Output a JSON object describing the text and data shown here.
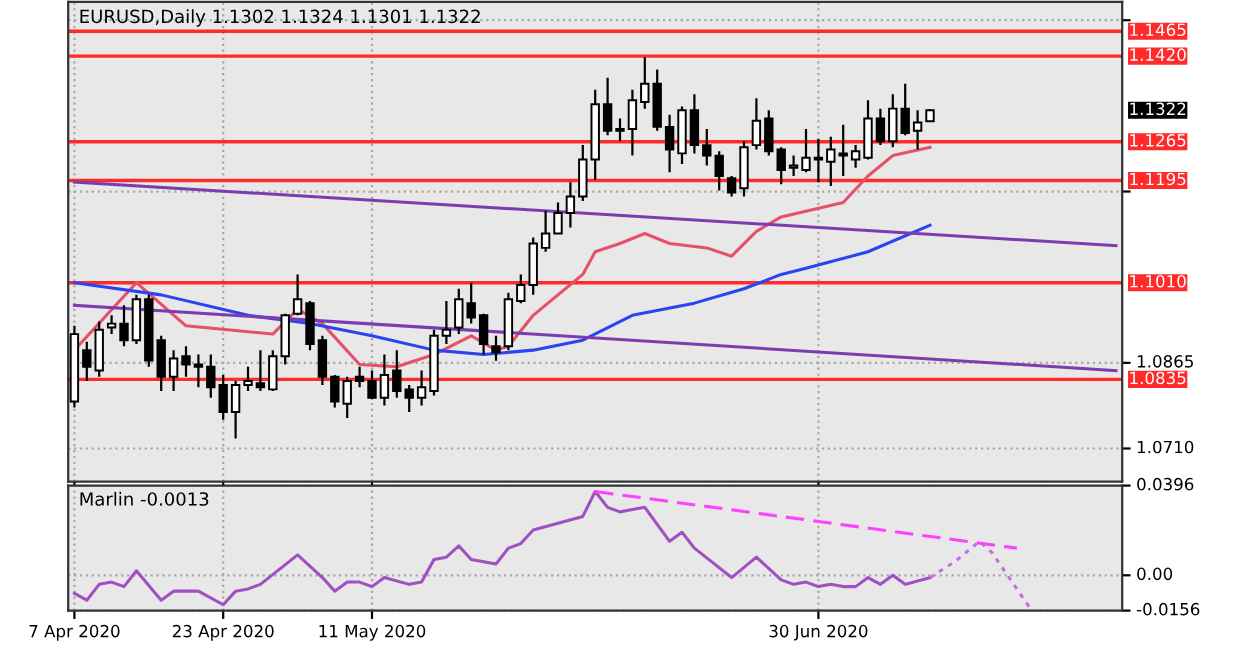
{
  "chart_data": [
    {
      "type": "candlestick",
      "title": "EURUSD,Daily 1.1302 1.1324 1.1301 1.1322",
      "categories": [
        null,
        null,
        null,
        null,
        null,
        null,
        null,
        null,
        null,
        null,
        null,
        null,
        null,
        null,
        null,
        null,
        null,
        null,
        null,
        null,
        null,
        null,
        null,
        null,
        null,
        null,
        null,
        null,
        null,
        null,
        null,
        null,
        null,
        null,
        null,
        null,
        null,
        null,
        null,
        null,
        null,
        null,
        null,
        null,
        null,
        null,
        null,
        null,
        null,
        null,
        null,
        null,
        null,
        null,
        null,
        null,
        null,
        null,
        null,
        null,
        null,
        null,
        null,
        null,
        null,
        null,
        null,
        null,
        null,
        null,
        null,
        null,
        null,
        null,
        null,
        null,
        null,
        null,
        null,
        null,
        null,
        null,
        null,
        null,
        null
      ],
      "ohlc": [
        [
          1.0795,
          1.0932,
          1.0784,
          1.0917
        ],
        [
          1.0888,
          1.0903,
          1.0832,
          1.0858
        ],
        [
          1.0851,
          1.094,
          1.084,
          1.0925
        ],
        [
          1.0929,
          1.0951,
          1.0917,
          1.0936
        ],
        [
          1.0936,
          1.0969,
          1.0895,
          1.0906
        ],
        [
          1.0906,
          1.0988,
          1.0899,
          1.098
        ],
        [
          1.098,
          1.0988,
          1.0858,
          1.0869
        ],
        [
          1.0906,
          1.0914,
          1.0814,
          1.084
        ],
        [
          1.084,
          1.0888,
          1.0814,
          1.0873
        ],
        [
          1.0877,
          1.0895,
          1.084,
          1.0862
        ],
        [
          1.0862,
          1.088,
          1.0821,
          1.0858
        ],
        [
          1.0858,
          1.088,
          1.0802,
          1.0821
        ],
        [
          1.0825,
          1.0843,
          1.0762,
          1.0776
        ],
        [
          1.0776,
          1.0832,
          1.0728,
          1.0825
        ],
        [
          1.0825,
          1.0858,
          1.0814,
          1.0832
        ],
        [
          1.0828,
          1.0888,
          1.0814,
          1.0821
        ],
        [
          1.0817,
          1.0888,
          1.0814,
          1.0877
        ],
        [
          1.0877,
          1.0954,
          1.0862,
          1.0951
        ],
        [
          1.0954,
          1.1025,
          1.0951,
          1.098
        ],
        [
          1.0973,
          1.0977,
          1.0888,
          1.0899
        ],
        [
          1.0906,
          1.0914,
          1.0825,
          1.084
        ],
        [
          1.084,
          1.0843,
          1.0784,
          1.0795
        ],
        [
          1.0791,
          1.084,
          1.0765,
          1.0832
        ],
        [
          1.084,
          1.0858,
          1.0821,
          1.0832
        ],
        [
          1.0832,
          1.0851,
          1.0799,
          1.0802
        ],
        [
          1.0802,
          1.088,
          1.0788,
          1.0843
        ],
        [
          1.0851,
          1.0888,
          1.0802,
          1.0814
        ],
        [
          1.0817,
          1.0825,
          1.0776,
          1.0802
        ],
        [
          1.0802,
          1.0851,
          1.0788,
          1.0821
        ],
        [
          1.0814,
          1.0925,
          1.0806,
          1.0914
        ],
        [
          1.0914,
          1.0977,
          1.0899,
          1.0925
        ],
        [
          1.0929,
          1.0999,
          1.0917,
          1.098
        ],
        [
          1.0973,
          1.101,
          1.0936,
          1.0947
        ],
        [
          1.0951,
          1.0954,
          1.088,
          1.0899
        ],
        [
          1.0895,
          1.0914,
          1.0869,
          1.0884
        ],
        [
          1.0895,
          1.0992,
          1.0888,
          1.098
        ],
        [
          1.0977,
          1.1025,
          1.0973,
          1.1006
        ],
        [
          1.1006,
          1.1092,
          1.0988,
          1.1081
        ],
        [
          1.1073,
          1.114,
          1.1066,
          1.1099
        ],
        [
          1.1099,
          1.1155,
          1.1099,
          1.1136
        ],
        [
          1.1136,
          1.1192,
          1.111,
          1.1166
        ],
        [
          1.1166,
          1.1259,
          1.1158,
          1.1233
        ],
        [
          1.1233,
          1.1359,
          1.1196,
          1.1333
        ],
        [
          1.1333,
          1.1381,
          1.1277,
          1.1285
        ],
        [
          1.1288,
          1.1307,
          1.1266,
          1.1285
        ],
        [
          1.1288,
          1.1359,
          1.124,
          1.134
        ],
        [
          1.1337,
          1.1418,
          1.1325,
          1.137
        ],
        [
          1.137,
          1.1396,
          1.1285,
          1.1292
        ],
        [
          1.1292,
          1.1314,
          1.121,
          1.1251
        ],
        [
          1.1244,
          1.1329,
          1.1225,
          1.1322
        ],
        [
          1.1322,
          1.1351,
          1.1244,
          1.1259
        ],
        [
          1.1259,
          1.1288,
          1.1222,
          1.124
        ],
        [
          1.124,
          1.1248,
          1.1177,
          1.1203
        ],
        [
          1.1199,
          1.1203,
          1.1166,
          1.1173
        ],
        [
          1.1181,
          1.1266,
          1.1166,
          1.1255
        ],
        [
          1.1259,
          1.1344,
          1.1251,
          1.1303
        ],
        [
          1.1307,
          1.1322,
          1.124,
          1.1248
        ],
        [
          1.1251,
          1.1255,
          1.1188,
          1.1214
        ],
        [
          1.1218,
          1.124,
          1.1203,
          1.1222
        ],
        [
          1.1214,
          1.1288,
          1.121,
          1.1236
        ],
        [
          1.1236,
          1.127,
          1.1192,
          1.1233
        ],
        [
          1.1229,
          1.1274,
          1.1185,
          1.1251
        ],
        [
          1.1244,
          1.1296,
          1.1203,
          1.124
        ],
        [
          1.1233,
          1.1259,
          1.1218,
          1.1248
        ],
        [
          1.1236,
          1.134,
          1.1233,
          1.1307
        ],
        [
          1.1307,
          1.1325,
          1.1259,
          1.1266
        ],
        [
          1.1266,
          1.1351,
          1.1255,
          1.1325
        ],
        [
          1.1325,
          1.137,
          1.1277,
          1.1281
        ],
        [
          1.1285,
          1.1322,
          1.1251,
          1.13
        ],
        [
          1.1302,
          1.1324,
          1.1301,
          1.1322
        ],
        null,
        null,
        null,
        null,
        null,
        null,
        null,
        null,
        null,
        null,
        null,
        null,
        null,
        null,
        null
      ],
      "series": [
        {
          "type": "line",
          "color": "#e85068",
          "values": [
            1.0888,
            null,
            null,
            null,
            null,
            1.101,
            null,
            null,
            null,
            1.0932,
            null,
            null,
            null,
            null,
            null,
            null,
            1.0917,
            null,
            1.0962,
            null,
            1.0936,
            null,
            null,
            1.0862,
            null,
            null,
            1.0858,
            null,
            null,
            1.088,
            null,
            null,
            1.0914,
            null,
            1.0888,
            1.0895,
            null,
            1.0951,
            null,
            null,
            null,
            1.1025,
            1.1066,
            null,
            1.1081,
            null,
            1.1099,
            null,
            1.1081,
            null,
            null,
            1.1073,
            null,
            1.1058,
            null,
            1.1103,
            null,
            1.1129,
            null,
            null,
            null,
            null,
            1.1155,
            null,
            1.1203,
            null,
            1.124,
            null,
            null,
            1.1255,
            null,
            null,
            null,
            null,
            null,
            null,
            null,
            null,
            null,
            null,
            null,
            null,
            null,
            null,
            null
          ]
        },
        {
          "type": "line",
          "color": "#2a44f0",
          "values": [
            1.101,
            null,
            null,
            null,
            null,
            null,
            null,
            1.0988,
            null,
            null,
            null,
            null,
            null,
            null,
            1.0951,
            null,
            null,
            null,
            null,
            1.0936,
            null,
            null,
            null,
            null,
            1.0914,
            null,
            null,
            null,
            null,
            1.0888,
            null,
            null,
            null,
            1.088,
            null,
            null,
            null,
            1.0888,
            null,
            null,
            null,
            1.0906,
            null,
            null,
            null,
            1.0951,
            null,
            null,
            null,
            null,
            1.0973,
            null,
            null,
            null,
            1.0999,
            null,
            null,
            1.1025,
            null,
            1.1036,
            null,
            null,
            null,
            null,
            1.1066,
            null,
            null,
            null,
            null,
            1.1114,
            null,
            null,
            null,
            null,
            null,
            null,
            null,
            null,
            null,
            null,
            null,
            null,
            null,
            null,
            null
          ]
        },
        {
          "type": "line",
          "color": "#7a3cb0",
          "values": [
            1.1192,
            null,
            null,
            null,
            null,
            null,
            null,
            null,
            null,
            null,
            null,
            null,
            null,
            null,
            null,
            null,
            null,
            null,
            null,
            null,
            null,
            null,
            null,
            null,
            null,
            null,
            null,
            null,
            null,
            null,
            null,
            null,
            null,
            null,
            null,
            null,
            null,
            null,
            null,
            null,
            null,
            null,
            null,
            null,
            null,
            null,
            null,
            null,
            null,
            null,
            null,
            null,
            null,
            null,
            null,
            null,
            null,
            null,
            null,
            null,
            null,
            null,
            null,
            null,
            null,
            null,
            null,
            null,
            null,
            null,
            null,
            null,
            null,
            null,
            null,
            null,
            null,
            null,
            null,
            null,
            null,
            null,
            null,
            null,
            1.1077
          ]
        },
        {
          "type": "line",
          "color": "#7a3cb0",
          "values": [
            1.0969,
            null,
            null,
            null,
            null,
            null,
            null,
            null,
            null,
            null,
            null,
            null,
            null,
            null,
            null,
            null,
            null,
            null,
            null,
            null,
            null,
            null,
            null,
            null,
            null,
            null,
            null,
            null,
            null,
            null,
            null,
            null,
            null,
            null,
            null,
            null,
            null,
            null,
            null,
            null,
            null,
            null,
            null,
            null,
            null,
            null,
            null,
            null,
            null,
            null,
            null,
            null,
            null,
            null,
            null,
            null,
            null,
            null,
            null,
            null,
            null,
            null,
            null,
            null,
            null,
            null,
            null,
            null,
            null,
            null,
            null,
            null,
            null,
            null,
            null,
            null,
            null,
            null,
            null,
            null,
            null,
            null,
            null,
            null,
            1.0851
          ]
        }
      ],
      "ylim": [
        1.065,
        1.1518
      ],
      "yticks": [
        {
          "value": 1.1485,
          "label": null
        },
        {
          "value": 1.1175,
          "label": null
        },
        {
          "value": 1.0865,
          "label": "1.0865"
        },
        {
          "value": 1.071,
          "label": "1.0710"
        }
      ],
      "ref_lines": [
        {
          "axis": "y",
          "value": 1.1465,
          "label": "1.1465",
          "color": "#ff2a2a"
        },
        {
          "axis": "y",
          "value": 1.142,
          "label": "1.1420",
          "color": "#ff2a2a"
        },
        {
          "axis": "y",
          "value": 1.1265,
          "label": "1.1265",
          "color": "#ff2a2a"
        },
        {
          "axis": "y",
          "value": 1.1195,
          "label": "1.1195",
          "color": "#ff2a2a"
        },
        {
          "axis": "y",
          "value": 1.101,
          "label": "1.1010",
          "color": "#ff2a2a"
        },
        {
          "axis": "y",
          "value": 1.0835,
          "label": "1.0835",
          "color": "#ff2a2a"
        }
      ],
      "annotations": [
        "1.1322"
      ],
      "grid": true,
      "tick_labels": "y"
    },
    {
      "type": "line",
      "categories": [
        "7 Apr 2020",
        null,
        null,
        null,
        null,
        null,
        null,
        null,
        null,
        null,
        null,
        null,
        "23 Apr 2020",
        null,
        null,
        null,
        null,
        null,
        null,
        null,
        null,
        null,
        null,
        null,
        "11 May 2020",
        null,
        null,
        null,
        null,
        null,
        null,
        null,
        null,
        null,
        null,
        null,
        null,
        null,
        null,
        null,
        null,
        null,
        null,
        null,
        null,
        null,
        null,
        null,
        null,
        null,
        null,
        null,
        null,
        null,
        null,
        null,
        null,
        null,
        null,
        null,
        "30 Jun 2020",
        null,
        null,
        null,
        null,
        null,
        null,
        null,
        null,
        null,
        null,
        null,
        null,
        null,
        null,
        null,
        null,
        null,
        null,
        null,
        null,
        null,
        null,
        null,
        null
      ],
      "series": [
        {
          "color": "#a050c0",
          "line_style": "solid",
          "values": [
            -0.008,
            -0.011,
            -0.004,
            -0.003,
            -0.005,
            0.002,
            null,
            -0.011,
            -0.007,
            null,
            -0.007,
            null,
            -0.013,
            -0.007,
            -0.006,
            -0.004,
            null,
            null,
            0.009,
            null,
            -0.001,
            -0.007,
            -0.003,
            -0.003,
            -0.005,
            -0.001,
            null,
            -0.004,
            -0.003,
            0.007,
            0.008,
            0.013,
            0.007,
            null,
            0.005,
            0.012,
            0.014,
            0.02,
            null,
            0.023,
            null,
            0.026,
            0.037,
            0.03,
            0.028,
            0.029,
            0.03,
            null,
            0.015,
            0.019,
            0.012,
            null,
            null,
            -0.001,
            null,
            0.008,
            null,
            -0.002,
            -0.004,
            -0.003,
            -0.005,
            -0.004,
            -0.005,
            -0.005,
            -0.001,
            -0.004,
            0.0,
            -0.004,
            null,
            -0.001,
            null,
            null,
            null,
            null,
            null,
            null,
            null,
            null,
            null,
            null,
            null,
            null,
            null,
            null,
            null
          ]
        },
        {
          "color": "#c070e0",
          "line_style": "dotted",
          "values": [
            null,
            null,
            null,
            null,
            null,
            null,
            null,
            null,
            null,
            null,
            null,
            null,
            null,
            null,
            null,
            null,
            null,
            null,
            null,
            null,
            null,
            null,
            null,
            null,
            null,
            null,
            null,
            null,
            null,
            null,
            null,
            null,
            null,
            null,
            null,
            null,
            null,
            null,
            null,
            null,
            null,
            null,
            null,
            null,
            null,
            null,
            null,
            null,
            null,
            null,
            null,
            null,
            null,
            null,
            null,
            null,
            null,
            null,
            null,
            null,
            null,
            null,
            null,
            null,
            null,
            null,
            null,
            null,
            null,
            -0.001,
            null,
            0.006,
            null,
            0.015,
            0.01,
            null,
            null,
            -0.014,
            null,
            null,
            null,
            null,
            null,
            null,
            null
          ]
        },
        {
          "color": "#ff40ff",
          "line_style": "dashed",
          "values": [
            null,
            null,
            null,
            null,
            null,
            null,
            null,
            null,
            null,
            null,
            null,
            null,
            null,
            null,
            null,
            null,
            null,
            null,
            null,
            null,
            null,
            null,
            null,
            null,
            null,
            null,
            null,
            null,
            null,
            null,
            null,
            null,
            null,
            null,
            null,
            null,
            null,
            null,
            null,
            null,
            null,
            null,
            0.037,
            null,
            null,
            null,
            null,
            null,
            null,
            null,
            null,
            null,
            null,
            null,
            null,
            null,
            null,
            null,
            null,
            null,
            null,
            null,
            null,
            null,
            null,
            null,
            null,
            null,
            null,
            null,
            null,
            null,
            null,
            null,
            null,
            null,
            0.012,
            null,
            null,
            null,
            null,
            null,
            null,
            null,
            null
          ]
        }
      ],
      "ylim": [
        -0.0156,
        0.0396
      ],
      "yticks": [
        0.0396,
        {
          "value": 0,
          "label": "0.00"
        },
        -0.0156
      ],
      "annotations": [
        "Marlin -0.0013"
      ],
      "grid": true
    }
  ]
}
